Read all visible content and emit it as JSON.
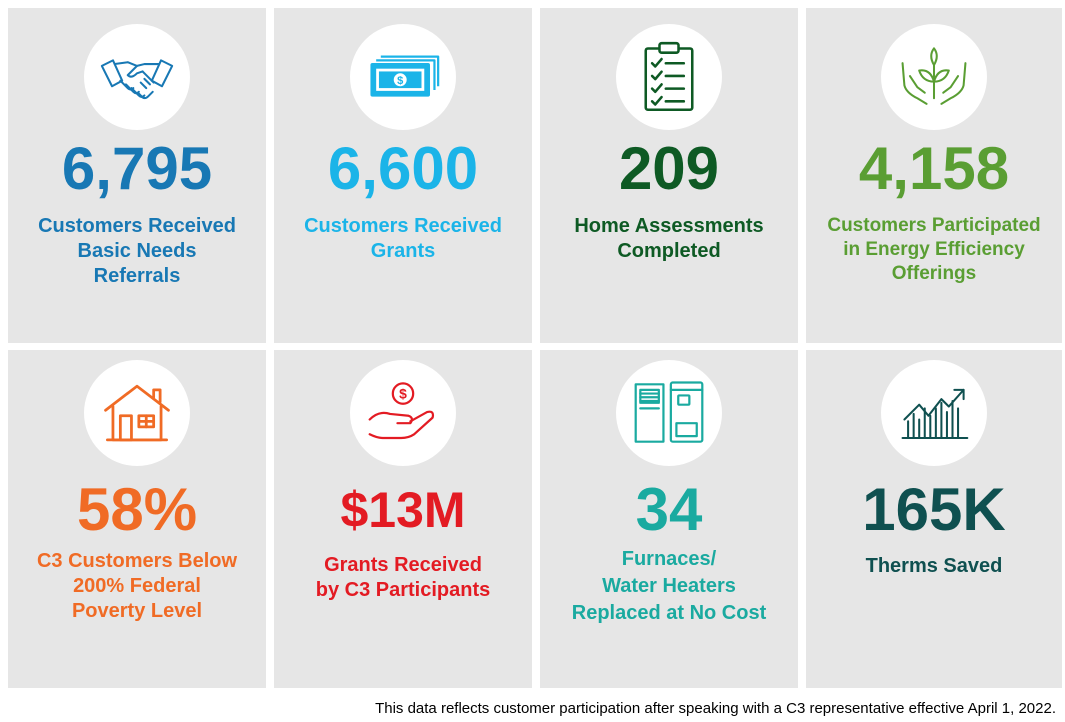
{
  "tiles": [
    {
      "number": "6,795",
      "label": "Customers Received\nBasic Needs\nReferrals",
      "color": "#1878b4",
      "icon": "handshake-icon"
    },
    {
      "number": "6,600",
      "label": "Customers Received\nGrants",
      "color": "#1bb4e8",
      "icon": "money-bills-icon"
    },
    {
      "number": "209",
      "label": "Home Assessments\nCompleted",
      "color": "#0e5a24",
      "icon": "clipboard-checklist-icon"
    },
    {
      "number": "4,158",
      "label": "Customers Participated\nin Energy Efficiency\nOfferings",
      "color": "#5a9e33",
      "icon": "plant-hands-icon"
    },
    {
      "number": "58%",
      "label": "C3 Customers Below\n200% Federal\nPoverty Level",
      "color": "#f06b25",
      "icon": "house-icon"
    },
    {
      "number": "$13M",
      "label": "Grants Received\nby C3 Participants",
      "color": "#e31b23",
      "icon": "hand-coin-icon"
    },
    {
      "number": "34",
      "label": "Furnaces/\nWater Heaters\nReplaced at No Cost",
      "color": "#1aaaa0",
      "icon": "furnace-water-heater-icon"
    },
    {
      "number": "165K",
      "label": "Therms Saved",
      "color": "#0f5050",
      "icon": "growth-chart-icon"
    }
  ],
  "footnote": "This data reflects customer participation after speaking with a C3 representative effective April 1, 2022."
}
